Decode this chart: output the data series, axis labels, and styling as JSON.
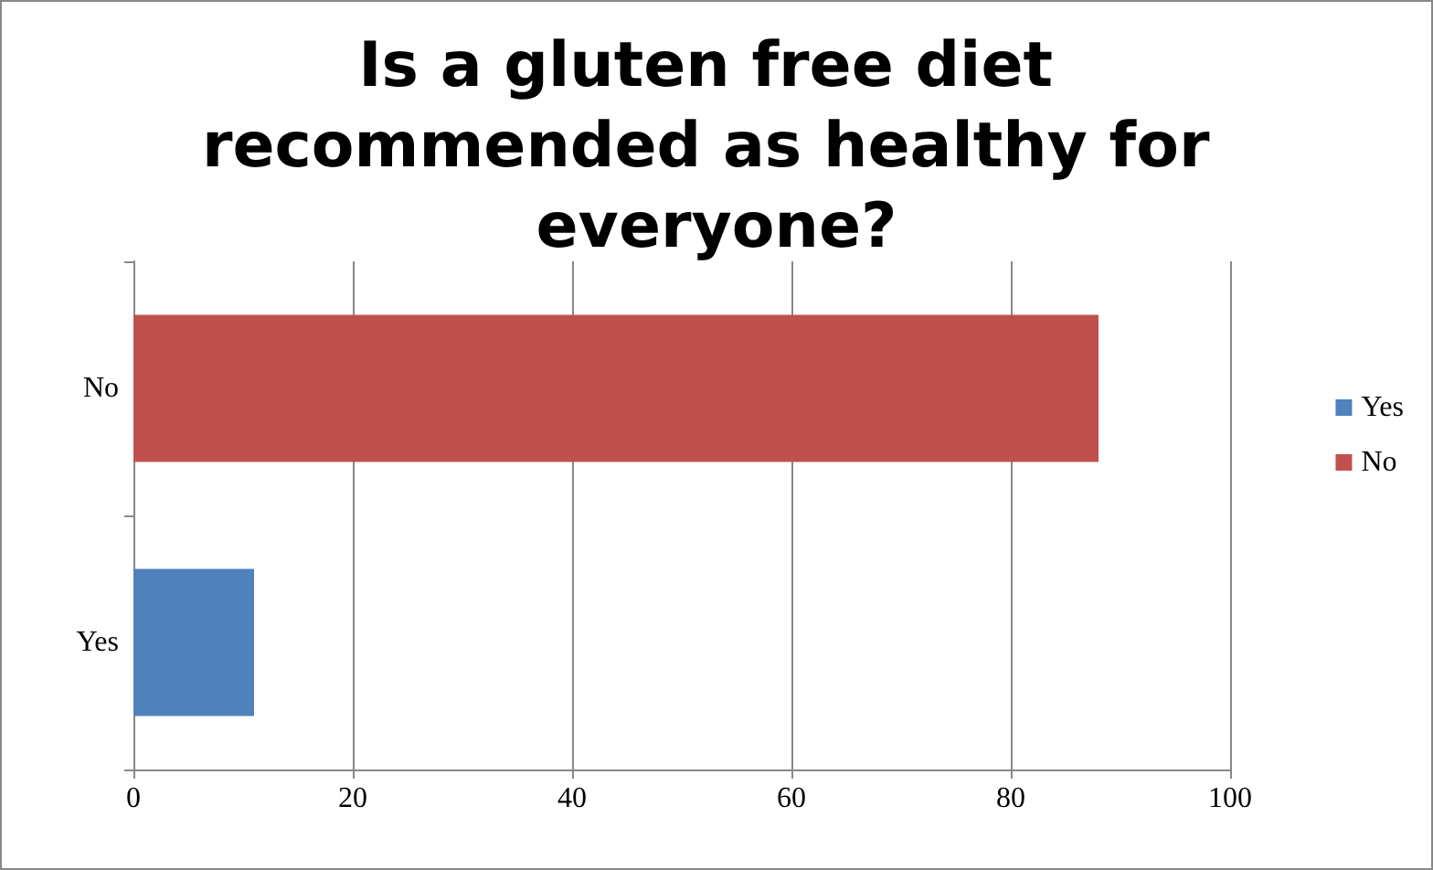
{
  "chart_data": {
    "type": "bar",
    "orientation": "horizontal",
    "stacked": true,
    "title": "Is a gluten free diet recommended as healthy for everyone?",
    "categories": [
      "No",
      "Yes"
    ],
    "series": [
      {
        "name": "Yes",
        "color": "#4f81bd",
        "values": [
          null,
          11
        ]
      },
      {
        "name": "No",
        "color": "#c0504d",
        "values": [
          88,
          null
        ]
      }
    ],
    "xlim": [
      0,
      100
    ],
    "xticks": [
      0,
      20,
      40,
      60,
      80,
      100
    ],
    "grid": "x",
    "legend": "right"
  }
}
